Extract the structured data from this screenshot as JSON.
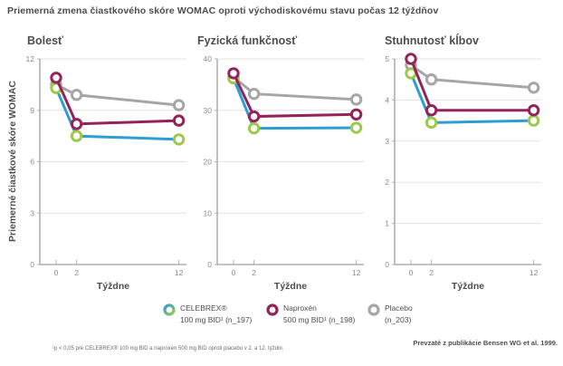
{
  "page_title": "Priemerná zmena čiastkového skóre WOMAC oproti východiskovému stavu počas 12 týždňov",
  "y_axis_label": "Priemerné čiastkové skóre WOMAC",
  "x_axis_label": "Týždne",
  "footnote": "¹p < 0,05 pre CELEBREX® 100 mg BID a naproxén 500 mg BID oproti placebu v 2. a 12. týždni.",
  "attribution": "Prevzaté z publikácie Bensen WG et al. 1999.",
  "colors": {
    "celebrex_line": "#2b9fd1",
    "celebrex_marker": "#9cc94a",
    "naproxen": "#94235a",
    "placebo": "#a6a6a6",
    "grid": "#e3e3e3",
    "axis": "#b0b0b0",
    "tick_text": "#8a8a8a",
    "label_text": "#4d4d4d"
  },
  "legend": {
    "items": [
      {
        "name": "celebrex",
        "line1": "CELEBREX®",
        "line2": "100 mg BID¹ (n_197)"
      },
      {
        "name": "naproxen",
        "line1": "Naproxén",
        "line2": "500 mg BID¹ (n_198)"
      },
      {
        "name": "placebo",
        "line1": "Placebo",
        "line2": "(n_203)"
      }
    ]
  },
  "chart_data": [
    {
      "type": "line",
      "title": "Bolesť",
      "x": [
        0,
        2,
        12
      ],
      "xticks": [
        0,
        2,
        12
      ],
      "xlabel": "Týždne",
      "ylim": [
        0,
        12
      ],
      "yticks": [
        0,
        3,
        6,
        9,
        12
      ],
      "grid": true,
      "series": [
        {
          "name": "CELEBREX 100 mg BID",
          "values": [
            10.3,
            7.5,
            7.3
          ]
        },
        {
          "name": "Naproxén 500 mg BID",
          "values": [
            10.9,
            8.2,
            8.4
          ]
        },
        {
          "name": "Placebo",
          "values": [
            10.5,
            9.9,
            9.3
          ]
        }
      ]
    },
    {
      "type": "line",
      "title": "Fyzická funkčnosť",
      "x": [
        0,
        2,
        12
      ],
      "xticks": [
        0,
        2,
        12
      ],
      "xlabel": "Týždne",
      "ylim": [
        0,
        40
      ],
      "yticks": [
        0,
        10,
        20,
        30,
        40
      ],
      "grid": true,
      "series": [
        {
          "name": "CELEBREX 100 mg BID",
          "values": [
            36.2,
            26.5,
            26.6
          ]
        },
        {
          "name": "Naproxén 500 mg BID",
          "values": [
            37.2,
            28.8,
            29.2
          ]
        },
        {
          "name": "Placebo",
          "values": [
            36.5,
            33.2,
            32.1
          ]
        }
      ]
    },
    {
      "type": "line",
      "title": "Stuhnutosť kĺbov",
      "x": [
        0,
        2,
        12
      ],
      "xticks": [
        0,
        2,
        12
      ],
      "xlabel": "Týždne",
      "ylim": [
        0,
        5
      ],
      "yticks": [
        0,
        1,
        2,
        3,
        4,
        5
      ],
      "grid": true,
      "series": [
        {
          "name": "CELEBREX 100 mg BID",
          "values": [
            4.65,
            3.45,
            3.5
          ]
        },
        {
          "name": "Naproxén 500 mg BID",
          "values": [
            5.0,
            3.75,
            3.75
          ]
        },
        {
          "name": "Placebo",
          "values": [
            4.85,
            4.5,
            4.3
          ]
        }
      ]
    }
  ],
  "series_styles": [
    {
      "key": "celebrex",
      "line": "#2b9fd1",
      "marker": "#9cc94a"
    },
    {
      "key": "naproxen",
      "line": "#94235a",
      "marker": "#94235a"
    },
    {
      "key": "placebo",
      "line": "#a6a6a6",
      "marker": "#a6a6a6"
    }
  ]
}
